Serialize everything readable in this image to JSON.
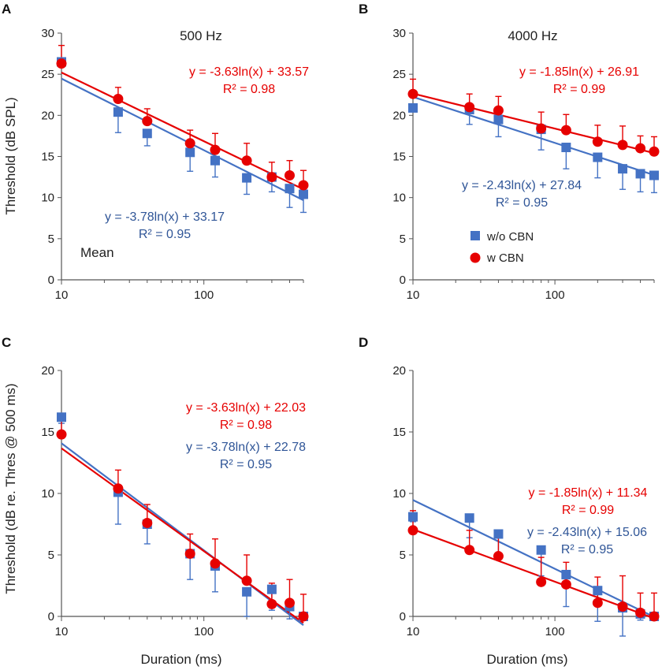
{
  "colors": {
    "blue": "#4472C4",
    "red": "#E60000",
    "axis": "#555555"
  },
  "legend": {
    "blue_label": "w/o CBN",
    "red_label": "w CBN",
    "blue_marker": "square",
    "red_marker": "circle"
  },
  "chart_data": [
    {
      "id": "A",
      "type": "scatter",
      "xscale": "log",
      "title": "500 Hz",
      "note": "Mean",
      "xlabel": "",
      "ylabel": "Threshold (dB SPL)",
      "xlim": [
        10,
        500
      ],
      "ylim": [
        0,
        30
      ],
      "xticks": [
        "10",
        "100"
      ],
      "yticks": [
        "0",
        "5",
        "10",
        "15",
        "20",
        "25",
        "30"
      ],
      "series": [
        {
          "name": "w/o CBN",
          "marker": "square",
          "color": "#4472C4",
          "x": [
            10,
            25,
            40,
            80,
            120,
            200,
            300,
            400,
            500
          ],
          "y": [
            26.5,
            20.4,
            17.8,
            15.5,
            14.5,
            12.4,
            12.5,
            11.1,
            10.4
          ],
          "err_lo": [
            0.5,
            2.5,
            1.5,
            2.3,
            2.0,
            2.0,
            1.8,
            2.3,
            2.2
          ],
          "err_hi": [
            0,
            0,
            0,
            0,
            0,
            0,
            0,
            0,
            0
          ],
          "fit": {
            "a": -3.78,
            "b": 33.17
          }
        },
        {
          "name": "w CBN",
          "marker": "circle",
          "color": "#E60000",
          "x": [
            10,
            25,
            40,
            80,
            120,
            200,
            300,
            400,
            500
          ],
          "y": [
            26.3,
            22.0,
            19.3,
            16.6,
            15.8,
            14.5,
            12.5,
            12.7,
            11.5
          ],
          "err_lo": [
            0,
            0,
            0,
            0,
            0,
            0,
            0,
            0,
            0
          ],
          "err_hi": [
            2.2,
            1.4,
            1.5,
            1.6,
            2.0,
            2.1,
            1.8,
            1.8,
            1.8
          ],
          "fit": {
            "a": -3.63,
            "b": 33.57
          }
        }
      ],
      "annotations": {
        "red_eq": "y = -3.63ln(x) + 33.57",
        "red_r2": "R² = 0.98",
        "blue_eq": "y = -3.78ln(x) + 33.17",
        "blue_r2": "R² = 0.95"
      },
      "show_legend": false
    },
    {
      "id": "B",
      "type": "scatter",
      "xscale": "log",
      "title": "4000 Hz",
      "note": "",
      "xlabel": "",
      "ylabel": "",
      "xlim": [
        10,
        500
      ],
      "ylim": [
        0,
        30
      ],
      "xticks": [
        "10",
        "100"
      ],
      "yticks": [
        "0",
        "5",
        "10",
        "15",
        "20",
        "25",
        "30"
      ],
      "series": [
        {
          "name": "w/o CBN",
          "marker": "square",
          "color": "#4472C4",
          "x": [
            10,
            25,
            40,
            80,
            120,
            200,
            300,
            400,
            500
          ],
          "y": [
            20.9,
            20.7,
            19.5,
            18.3,
            16.1,
            14.9,
            13.5,
            12.9,
            12.7
          ],
          "err_lo": [
            0.4,
            1.8,
            2.1,
            2.5,
            2.6,
            2.5,
            2.5,
            2.2,
            2.1
          ],
          "err_hi": [
            0,
            0,
            0,
            0,
            0,
            0,
            0,
            0,
            0
          ],
          "fit": {
            "a": -2.43,
            "b": 27.84
          }
        },
        {
          "name": "w CBN",
          "marker": "circle",
          "color": "#E60000",
          "x": [
            10,
            25,
            40,
            80,
            120,
            200,
            300,
            400,
            500
          ],
          "y": [
            22.6,
            21.0,
            20.6,
            18.4,
            18.2,
            16.8,
            16.4,
            16.0,
            15.6
          ],
          "err_lo": [
            0,
            0,
            0,
            0,
            0,
            0,
            0,
            0,
            0
          ],
          "err_hi": [
            1.8,
            1.6,
            1.7,
            2.0,
            1.9,
            2.0,
            2.3,
            1.5,
            1.8
          ],
          "fit": {
            "a": -1.85,
            "b": 26.91
          }
        }
      ],
      "annotations": {
        "red_eq": "y = -1.85ln(x) + 26.91",
        "red_r2": "R² = 0.99",
        "blue_eq": "y = -2.43ln(x) + 27.84",
        "blue_r2": "R² = 0.95"
      },
      "show_legend": true
    },
    {
      "id": "C",
      "type": "scatter",
      "xscale": "log",
      "title": "",
      "note": "",
      "xlabel": "Duration (ms)",
      "ylabel": "Threshold (dB re. Thres @ 500 ms)",
      "xlim": [
        10,
        500
      ],
      "ylim": [
        0,
        20
      ],
      "xticks": [
        "10",
        "100"
      ],
      "yticks": [
        "0",
        "5",
        "10",
        "15",
        "20"
      ],
      "series": [
        {
          "name": "w/o CBN",
          "marker": "square",
          "color": "#4472C4",
          "x": [
            10,
            25,
            40,
            80,
            120,
            200,
            300,
            400,
            500
          ],
          "y": [
            16.2,
            10.1,
            7.5,
            5.1,
            4.1,
            2.0,
            2.2,
            0.8,
            0.0
          ],
          "err_lo": [
            0.5,
            2.6,
            1.6,
            2.1,
            2.1,
            2.0,
            1.7,
            1.0,
            0
          ],
          "err_hi": [
            0,
            0,
            0,
            0,
            0,
            0,
            0,
            0,
            0
          ],
          "fit": {
            "a": -3.78,
            "b": 22.78
          }
        },
        {
          "name": "w CBN",
          "marker": "circle",
          "color": "#E60000",
          "x": [
            10,
            25,
            40,
            80,
            120,
            200,
            300,
            400,
            500
          ],
          "y": [
            14.8,
            10.4,
            7.6,
            5.1,
            4.3,
            2.9,
            1.0,
            1.1,
            0.0
          ],
          "err_lo": [
            0,
            0,
            0,
            0,
            0,
            0,
            0,
            0,
            0
          ],
          "err_hi": [
            1.6,
            1.5,
            1.5,
            1.6,
            2.0,
            2.1,
            1.7,
            1.9,
            1.8
          ],
          "fit": {
            "a": -3.63,
            "b": 22.03
          }
        }
      ],
      "annotations": {
        "red_eq": "y = -3.63ln(x) + 22.03",
        "red_r2": "R² = 0.98",
        "blue_eq": "y = -3.78ln(x) + 22.78",
        "blue_r2": "R² = 0.95"
      },
      "show_legend": false
    },
    {
      "id": "D",
      "type": "scatter",
      "xscale": "log",
      "title": "",
      "note": "",
      "xlabel": "Duration (ms)",
      "ylabel": "",
      "xlim": [
        10,
        500
      ],
      "ylim": [
        0,
        20
      ],
      "xticks": [
        "10",
        "100"
      ],
      "yticks": [
        "0",
        "5",
        "10",
        "15",
        "20"
      ],
      "series": [
        {
          "name": "w/o CBN",
          "marker": "square",
          "color": "#4472C4",
          "x": [
            10,
            25,
            40,
            80,
            120,
            200,
            300,
            400,
            500
          ],
          "y": [
            8.1,
            8.0,
            6.7,
            5.4,
            3.4,
            2.1,
            0.7,
            0.2,
            0.0
          ],
          "err_lo": [
            0.4,
            1.6,
            1.9,
            2.1,
            2.6,
            2.5,
            2.3,
            0.5,
            0
          ],
          "err_hi": [
            0,
            0,
            0,
            0,
            0,
            0,
            0,
            0,
            0
          ],
          "fit": {
            "a": -2.43,
            "b": 15.06
          }
        },
        {
          "name": "w CBN",
          "marker": "circle",
          "color": "#E60000",
          "x": [
            10,
            25,
            40,
            80,
            120,
            200,
            300,
            400,
            500
          ],
          "y": [
            7.0,
            5.4,
            4.9,
            2.8,
            2.6,
            1.1,
            0.8,
            0.3,
            0.0
          ],
          "err_lo": [
            0,
            0,
            0,
            0,
            0,
            0,
            0,
            0,
            0
          ],
          "err_hi": [
            1.6,
            1.6,
            1.6,
            2.0,
            1.8,
            2.1,
            2.5,
            1.6,
            1.9
          ],
          "fit": {
            "a": -1.85,
            "b": 11.34
          }
        }
      ],
      "annotations": {
        "red_eq": "y = -1.85ln(x) + 11.34",
        "red_r2": "R² = 0.99",
        "blue_eq": "y = -2.43ln(x) + 15.06",
        "blue_r2": "R² = 0.95"
      },
      "show_legend": false
    }
  ]
}
